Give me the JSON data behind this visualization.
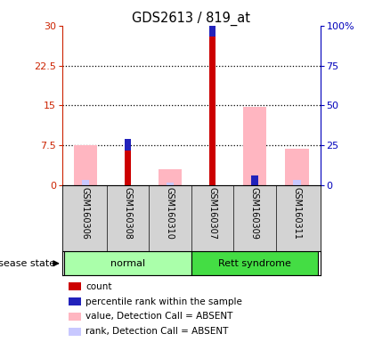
{
  "title": "GDS2613 / 819_at",
  "samples": [
    "GSM160306",
    "GSM160308",
    "GSM160310",
    "GSM160307",
    "GSM160309",
    "GSM160311"
  ],
  "groups": [
    "normal",
    "normal",
    "normal",
    "Rett syndrome",
    "Rett syndrome",
    "Rett syndrome"
  ],
  "group_labels": [
    "normal",
    "Rett syndrome"
  ],
  "group_colors_light": [
    "#AAFFAA",
    "#55DD55"
  ],
  "ylim_left": [
    0,
    30
  ],
  "ylim_right": [
    0,
    100
  ],
  "yticks_left": [
    0,
    7.5,
    15,
    22.5,
    30
  ],
  "yticks_right": [
    0,
    25,
    50,
    75,
    100
  ],
  "ytick_labels_left": [
    "0",
    "7.5",
    "15",
    "22.5",
    "30"
  ],
  "ytick_labels_right": [
    "0",
    "25",
    "50",
    "75",
    "100%"
  ],
  "count_values": [
    0,
    6.5,
    0,
    28.0,
    0,
    0
  ],
  "percentile_values": [
    0,
    2.2,
    0,
    6.5,
    1.8,
    0
  ],
  "value_absent": [
    7.5,
    0,
    3.0,
    0,
    14.8,
    6.8
  ],
  "rank_absent": [
    1.0,
    0,
    0.5,
    0,
    1.8,
    1.0
  ],
  "count_color": "#CC0000",
  "percentile_color": "#2222BB",
  "value_absent_color": "#FFB6C1",
  "rank_absent_color": "#C8C8FF",
  "legend_items": [
    "count",
    "percentile rank within the sample",
    "value, Detection Call = ABSENT",
    "rank, Detection Call = ABSENT"
  ],
  "legend_colors": [
    "#CC0000",
    "#2222BB",
    "#FFB6C1",
    "#C8C8FF"
  ],
  "disease_label": "disease state",
  "left_yaxis_color": "#CC2200",
  "right_yaxis_color": "#0000BB",
  "sample_box_color": "#D3D3D3",
  "normal_color": "#AAFFAA",
  "rett_color": "#44DD44"
}
